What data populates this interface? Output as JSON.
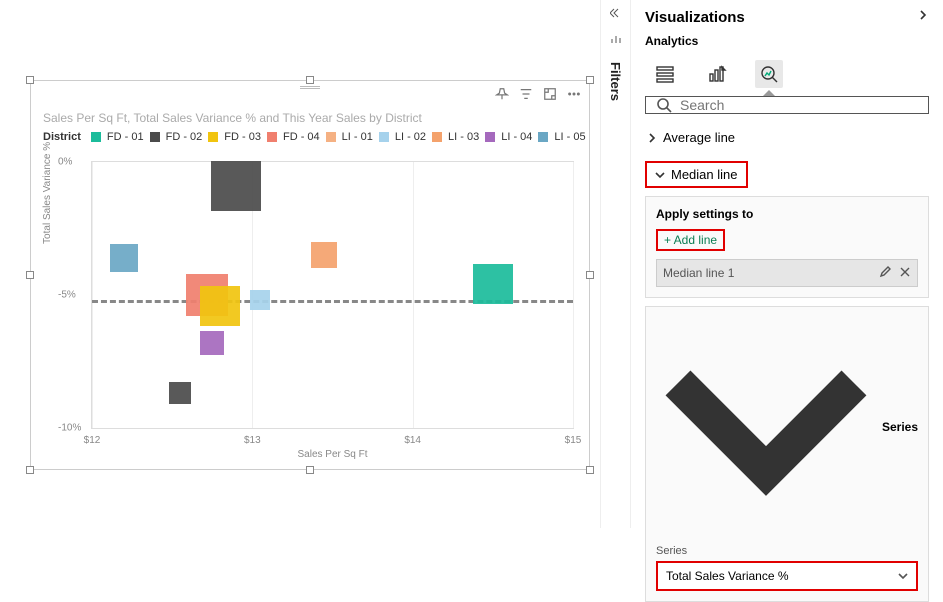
{
  "chart": {
    "title": "Sales Per Sq Ft, Total Sales Variance % and This Year Sales by District",
    "legend_title": "District",
    "xlabel": "Sales Per Sq Ft",
    "ylabel": "Total Sales Variance %",
    "xlim": [
      12,
      15
    ],
    "ylim": [
      -10,
      0
    ],
    "xticks": [
      {
        "v": 12,
        "label": "$12"
      },
      {
        "v": 13,
        "label": "$13"
      },
      {
        "v": 14,
        "label": "$14"
      },
      {
        "v": 15,
        "label": "$15"
      }
    ],
    "yticks": [
      {
        "v": 0,
        "label": "0%"
      },
      {
        "v": -5,
        "label": "-5%"
      },
      {
        "v": -10,
        "label": "-10%"
      }
    ],
    "series": [
      {
        "name": "FD - 01",
        "color": "#1bbc9b"
      },
      {
        "name": "FD - 02",
        "color": "#4b4b4b"
      },
      {
        "name": "FD - 03",
        "color": "#f1c40f"
      },
      {
        "name": "FD - 04",
        "color": "#f07f6e"
      },
      {
        "name": "LI - 01",
        "color": "#f5b183"
      },
      {
        "name": "LI - 02",
        "color": "#a6d2ec"
      },
      {
        "name": "LI - 03",
        "color": "#f4a26c"
      },
      {
        "name": "LI - 04",
        "color": "#a569bd"
      },
      {
        "name": "LI - 05",
        "color": "#6aa7c4"
      }
    ],
    "points": [
      {
        "x": 12.9,
        "y": -0.9,
        "size": 50,
        "color": "#4b4b4b"
      },
      {
        "x": 12.2,
        "y": -3.6,
        "size": 28,
        "color": "#6aa7c4"
      },
      {
        "x": 12.72,
        "y": -5.0,
        "size": 42,
        "color": "#f07f6e"
      },
      {
        "x": 12.8,
        "y": -5.4,
        "size": 40,
        "color": "#f1c40f"
      },
      {
        "x": 13.05,
        "y": -5.2,
        "size": 20,
        "color": "#a6d2ec"
      },
      {
        "x": 13.45,
        "y": -3.5,
        "size": 26,
        "color": "#f4a26c"
      },
      {
        "x": 14.5,
        "y": -4.6,
        "size": 40,
        "color": "#1bbc9b"
      },
      {
        "x": 12.75,
        "y": -6.8,
        "size": 24,
        "color": "#a569bd"
      },
      {
        "x": 12.55,
        "y": -8.7,
        "size": 22,
        "color": "#4b4b4b"
      }
    ],
    "median_y": -5.2
  },
  "filters": {
    "label": "Filters"
  },
  "viz": {
    "header": "Visualizations",
    "sub": "Analytics",
    "search_placeholder": "Search",
    "sections": {
      "avg": "Average line",
      "median": "Median line"
    },
    "apply": {
      "title": "Apply settings to",
      "add": "+ Add line",
      "line_name": "Median line 1"
    },
    "series_card": {
      "header": "Series",
      "label": "Series",
      "value": "Total Sales Variance %"
    }
  }
}
